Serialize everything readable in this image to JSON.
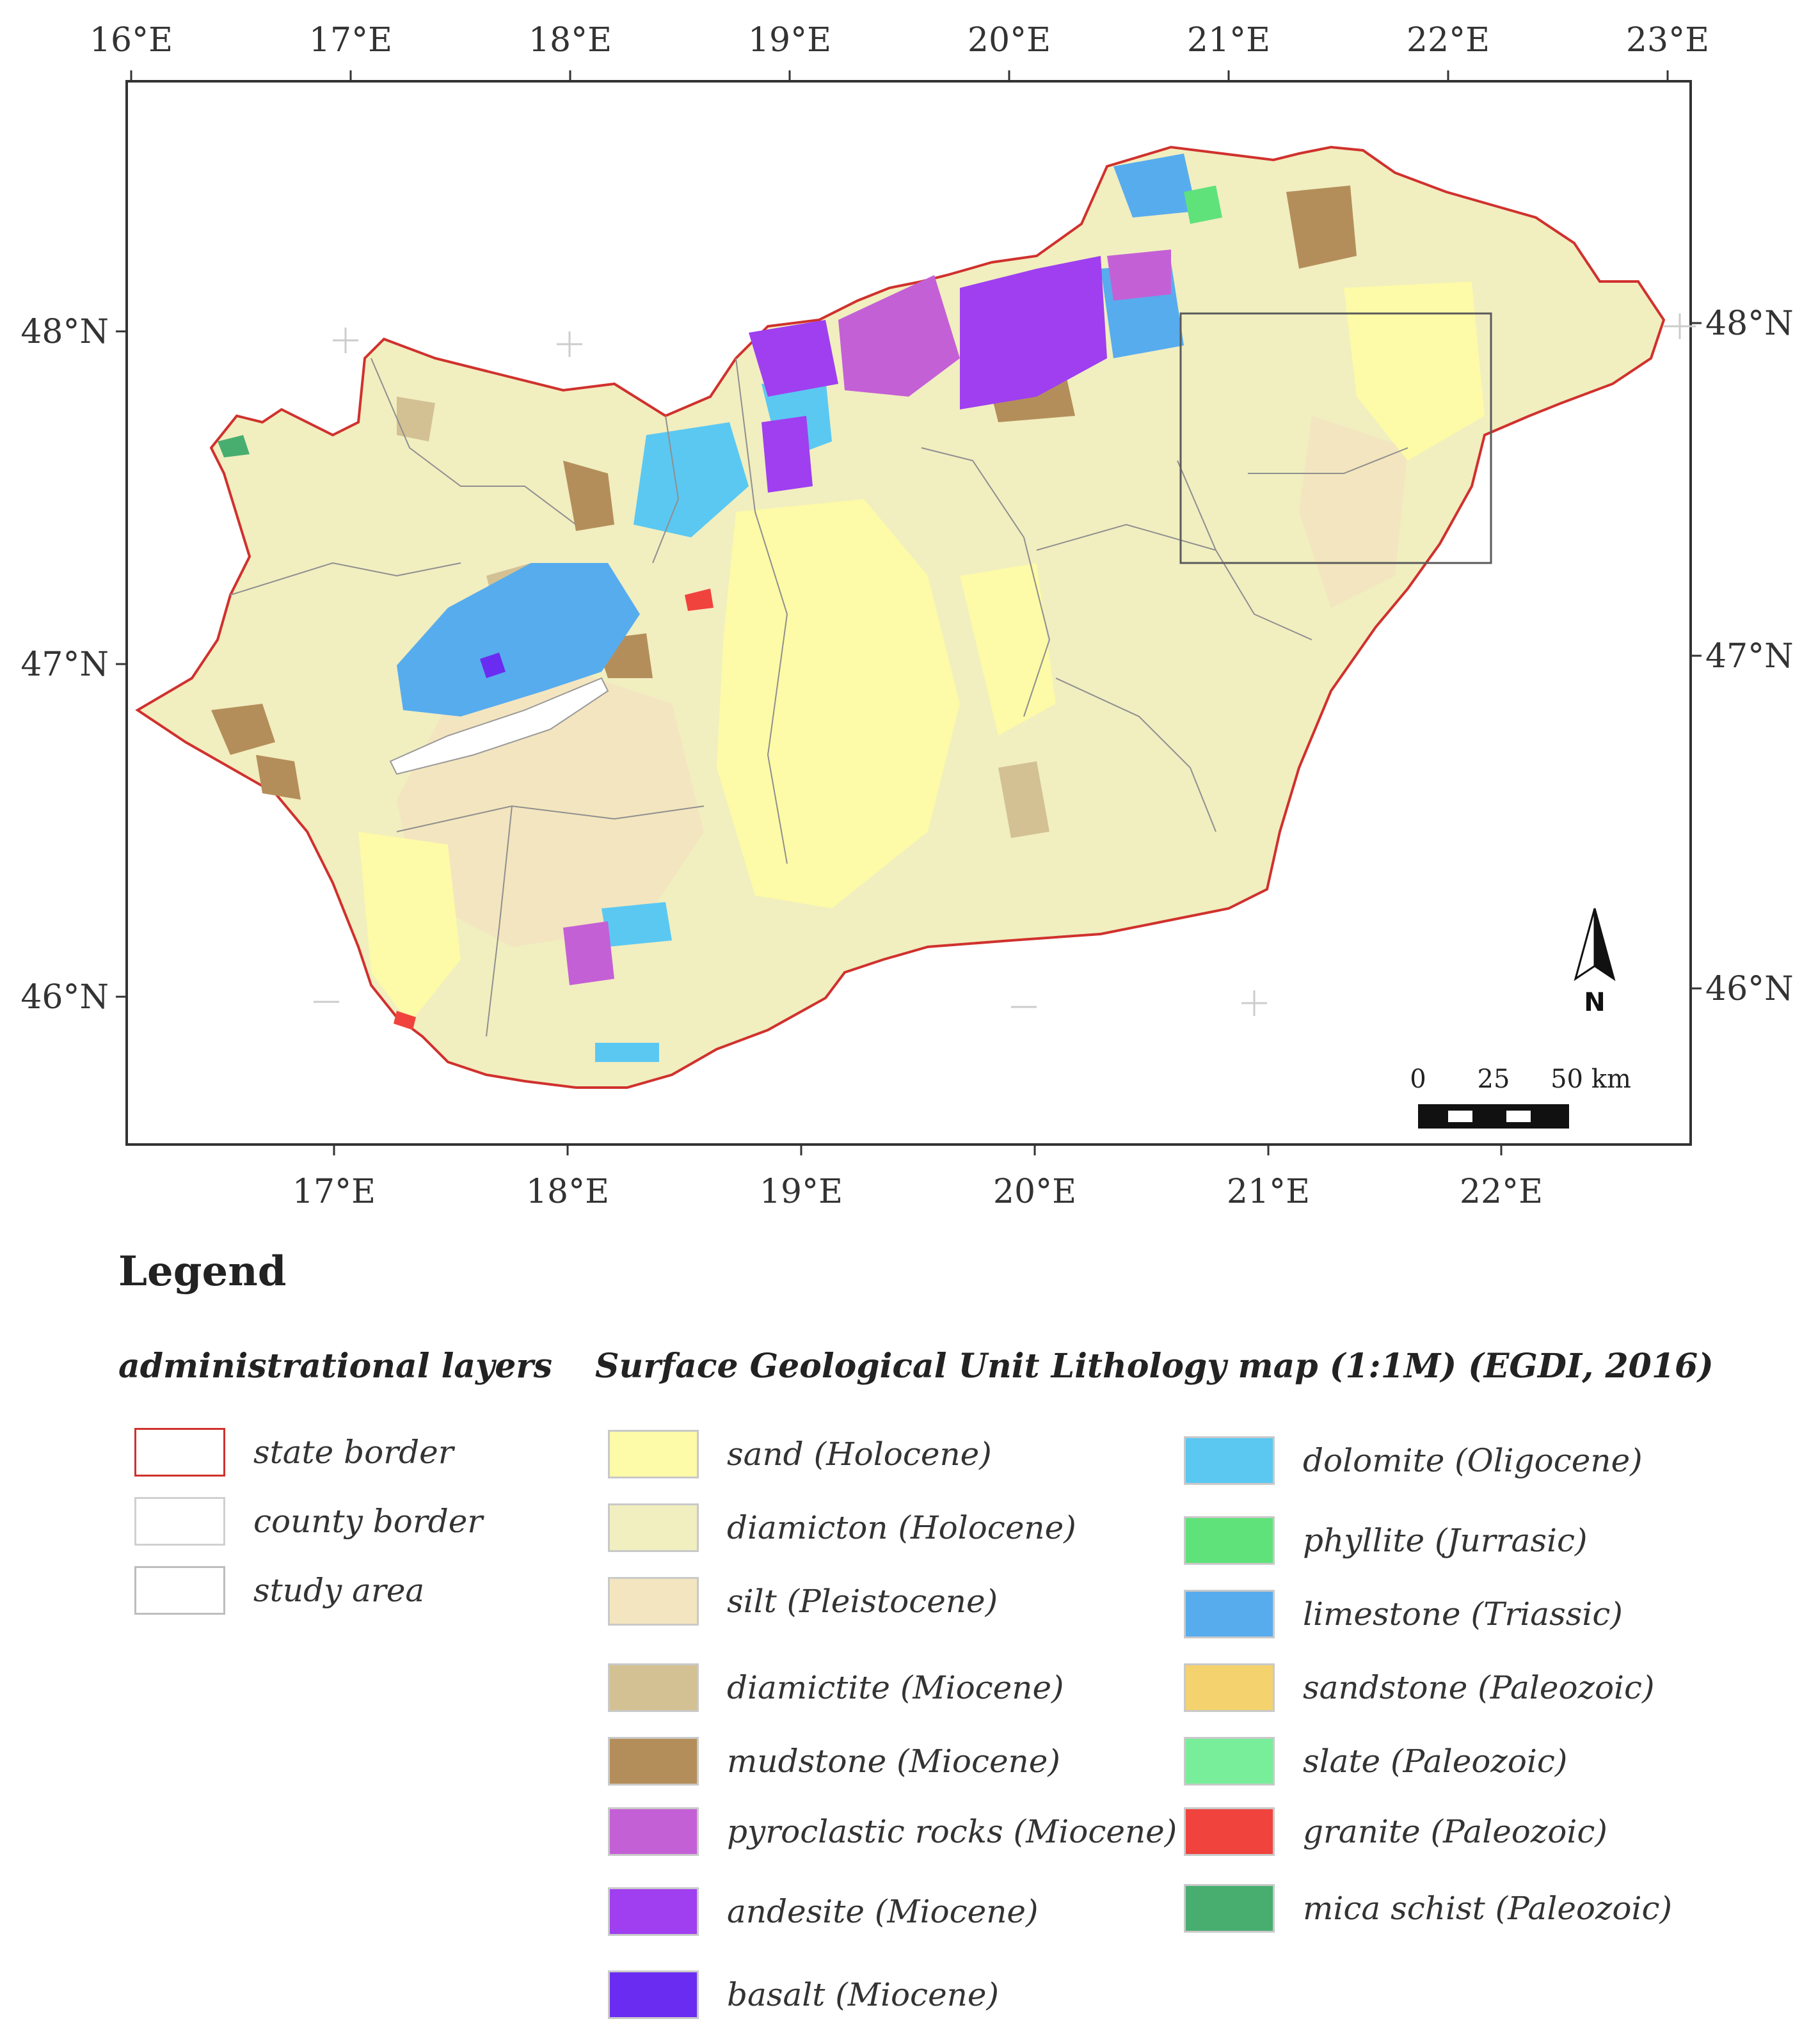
{
  "map": {
    "lon_ticks": [
      "16°E",
      "17°E",
      "18°E",
      "19°E",
      "20°E",
      "21°E",
      "22°E",
      "23°E"
    ],
    "lon_ticks_bottom": [
      "17°E",
      "18°E",
      "19°E",
      "20°E",
      "21°E",
      "22°E"
    ],
    "lat_ticks": [
      "48°N",
      "47°N",
      "46°N"
    ],
    "north_arrow": {
      "label": "N",
      "icon": "north-arrow-icon"
    },
    "scale_bar": {
      "labels": [
        "0",
        "25",
        "50 km"
      ]
    },
    "colors": {
      "state_border": "#d0312d",
      "county_border": "#8f8f8f",
      "study_area": "#5a5a5a",
      "background": "#f1eec0"
    }
  },
  "legend": {
    "title": "Legend",
    "admin": {
      "title": "administrational layers",
      "items": [
        {
          "label": "state border",
          "border": "#d0312d"
        },
        {
          "label": "county border",
          "border": "#d0d0d0"
        },
        {
          "label": "study area",
          "border": "#bdbdbd"
        }
      ]
    },
    "geo": {
      "title": "Surface Geological Unit Lithology map (1:1M) (EGDI, 2016)",
      "items": [
        {
          "label": "sand (Holocene)",
          "color": "#fdfaa8"
        },
        {
          "label": "diamicton (Holocene)",
          "color": "#f1eec0"
        },
        {
          "label": "silt (Pleistocene)",
          "color": "#f3e5bf"
        },
        {
          "label": "diamictite (Miocene)",
          "color": "#d3c193"
        },
        {
          "label": "mudstone (Miocene)",
          "color": "#b48e5a"
        },
        {
          "label": "pyroclastic rocks (Miocene)",
          "color": "#c460d6"
        },
        {
          "label": "andesite (Miocene)",
          "color": "#9f3ff0"
        },
        {
          "label": "basalt (Miocene)",
          "color": "#6a2cf0"
        },
        {
          "label": "dolomite (Oligocene)",
          "color": "#5bc8f2"
        },
        {
          "label": "phyllite (Jurrasic)",
          "color": "#5fe27a"
        },
        {
          "label": "limestone (Triassic)",
          "color": "#57acee"
        },
        {
          "label": "sandstone (Paleozoic)",
          "color": "#f4d26e"
        },
        {
          "label": "slate (Paleozoic)",
          "color": "#79ee9a"
        },
        {
          "label": "granite (Paleozoic)",
          "color": "#f0433e"
        },
        {
          "label": "mica schist (Paleozoic)",
          "color": "#48ae70"
        }
      ]
    }
  }
}
